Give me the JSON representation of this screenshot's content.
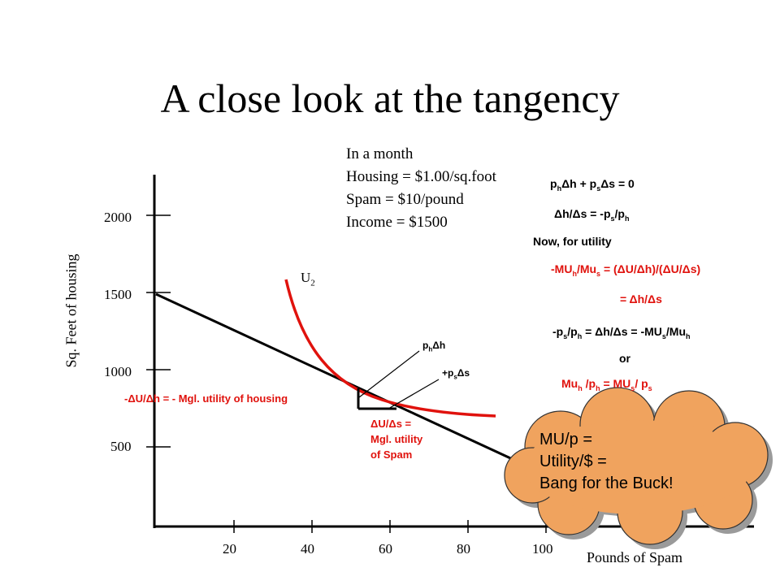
{
  "title": "A close look at the tangency",
  "info_lines": [
    "In a month",
    "Housing = $1.00/sq.foot",
    "Spam = $10/pound",
    "Income = $1500"
  ],
  "y_axis": {
    "label": "Sq. Feet of housing",
    "ticks": [
      "2000",
      "1500",
      "1000",
      "500"
    ]
  },
  "x_axis": {
    "label": "Pounds of Spam",
    "ticks": [
      "20",
      "40",
      "60",
      "80",
      "100"
    ]
  },
  "curve_label": "U",
  "curve_label_sub": "2",
  "annotations": {
    "ph_dh": "p",
    "ph_dh_sub": "h",
    "ph_dh_rest": "Δh",
    "ps_ds": "+p",
    "ps_ds_sub": "s",
    "ps_ds_rest": "Δs",
    "mu_housing": "-ΔU/Δh = - Mgl. utility of housing",
    "mu_spam_lines": [
      "ΔU/Δs =",
      "Mgl. utility",
      "of Spam"
    ]
  },
  "derivation": {
    "eq1": "p_hΔh + p_sΔs = 0",
    "eq2": "Δh/Δs = -p_s/p_h",
    "eq3": "Now, for utility",
    "eq4": "-MU_h/Mu_s = (ΔU/Δh)/(ΔU/Δs)",
    "eq5": "= Δh/Δs",
    "eq6": "-p_s/p_h = Δh/Δs = -MU_s/Mu_h",
    "eq7": "or",
    "eq8": "Mu_h /p_h = MU_s/ p_s"
  },
  "cloud_lines": [
    "MU/p =",
    "Utility/$ =",
    "Bang for the Buck!"
  ],
  "colors": {
    "curve": "#e0120d",
    "cloud": "#f0a35e",
    "axis": "#000000"
  }
}
